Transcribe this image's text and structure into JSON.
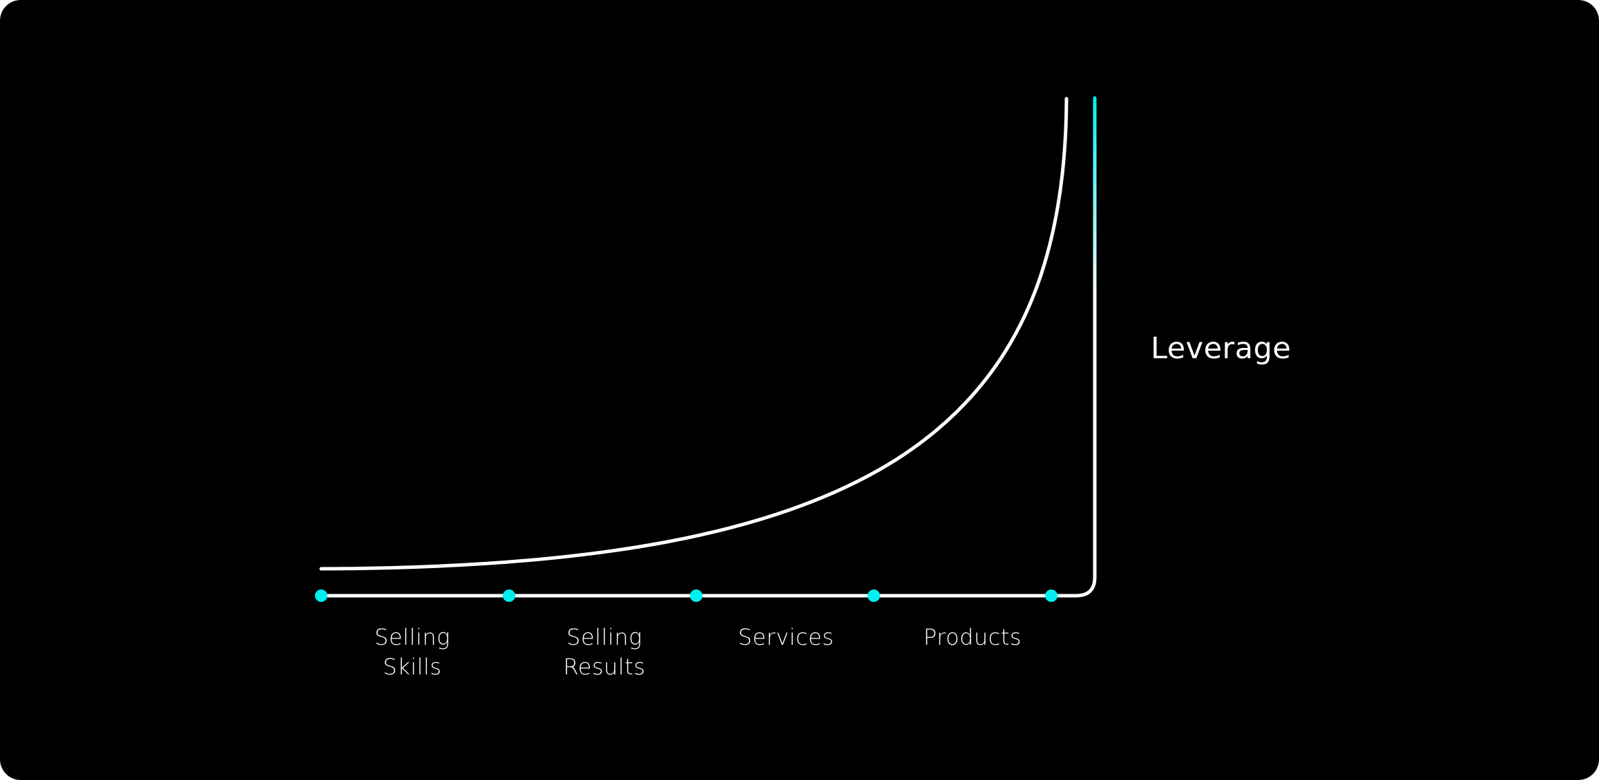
{
  "axis_label": "Leverage",
  "stages": [
    {
      "lines": [
        "Selling",
        "Skills"
      ]
    },
    {
      "lines": [
        "Selling",
        "Results"
      ]
    },
    {
      "lines": [
        "Services"
      ]
    },
    {
      "lines": [
        "Products"
      ]
    }
  ],
  "colors": {
    "background": "#000000",
    "line": "#ffffff",
    "accent": "#00f0f0"
  }
}
